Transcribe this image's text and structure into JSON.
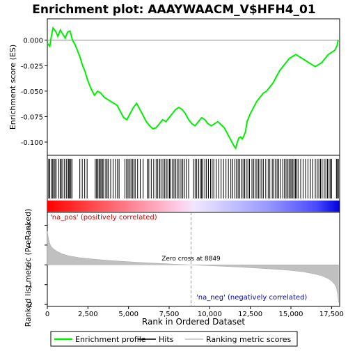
{
  "chart_data": {
    "type": "line",
    "title": "Enrichment plot: AAAYWAACM_V$HFH4_01",
    "top_panel": {
      "ylabel": "Enrichment score (ES)",
      "ylim": [
        -0.113,
        0.021
      ],
      "yticks": [
        0.0,
        -0.025,
        -0.05,
        -0.075,
        -0.1
      ],
      "ytick_labels": [
        "0.000",
        "-0.025",
        "-0.050",
        "-0.075",
        "-0.100"
      ],
      "series": [
        {
          "name": "Enrichment profile",
          "color": "#00ee00",
          "x": [
            0,
            150,
            250,
            350,
            500,
            650,
            800,
            950,
            1100,
            1250,
            1400,
            1550,
            1700,
            1850,
            2000,
            2150,
            2300,
            2500,
            2700,
            2900,
            3100,
            3300,
            3500,
            3700,
            3900,
            4100,
            4300,
            4500,
            4700,
            4900,
            5100,
            5300,
            5500,
            5700,
            5900,
            6100,
            6300,
            6500,
            6700,
            6900,
            7100,
            7300,
            7500,
            7700,
            7900,
            8100,
            8300,
            8500,
            8700,
            8900,
            9100,
            9300,
            9500,
            9700,
            9900,
            10100,
            10300,
            10500,
            10700,
            10900,
            11100,
            11300,
            11500,
            11600,
            11700,
            11800,
            11900,
            12000,
            12100,
            12200,
            12300,
            12500,
            12700,
            12900,
            13100,
            13300,
            13500,
            13700,
            13900,
            14100,
            14300,
            14500,
            14700,
            14900,
            15100,
            15300,
            15500,
            15700,
            15900,
            16100,
            16300,
            16500,
            16700,
            16900,
            17100,
            17300,
            17500,
            17700,
            17850,
            17900
          ],
          "y": [
            -0.003,
            -0.006,
            0.004,
            0.012,
            0.009,
            0.004,
            0.01,
            0.006,
            0.002,
            0.008,
            0.009,
            0.0,
            -0.004,
            -0.01,
            -0.016,
            -0.024,
            -0.03,
            -0.04,
            -0.048,
            -0.054,
            -0.05,
            -0.052,
            -0.056,
            -0.058,
            -0.06,
            -0.062,
            -0.064,
            -0.07,
            -0.076,
            -0.078,
            -0.072,
            -0.066,
            -0.062,
            -0.068,
            -0.074,
            -0.08,
            -0.084,
            -0.087,
            -0.086,
            -0.082,
            -0.078,
            -0.08,
            -0.076,
            -0.072,
            -0.068,
            -0.066,
            -0.068,
            -0.072,
            -0.078,
            -0.082,
            -0.084,
            -0.08,
            -0.076,
            -0.078,
            -0.082,
            -0.084,
            -0.082,
            -0.08,
            -0.083,
            -0.086,
            -0.092,
            -0.098,
            -0.104,
            -0.106,
            -0.1,
            -0.096,
            -0.095,
            -0.097,
            -0.094,
            -0.09,
            -0.08,
            -0.072,
            -0.066,
            -0.06,
            -0.056,
            -0.052,
            -0.05,
            -0.046,
            -0.042,
            -0.036,
            -0.03,
            -0.026,
            -0.022,
            -0.018,
            -0.016,
            -0.014,
            -0.016,
            -0.018,
            -0.02,
            -0.022,
            -0.024,
            -0.026,
            -0.024,
            -0.022,
            -0.018,
            -0.014,
            -0.012,
            -0.01,
            -0.005,
            0.0
          ]
        }
      ]
    },
    "hits": {
      "name": "Hits",
      "positions": [
        80,
        150,
        240,
        330,
        400,
        470,
        540,
        700,
        790,
        860,
        950,
        1060,
        1170,
        1280,
        1330,
        1390,
        1450,
        1520,
        2000,
        2150,
        2300,
        2450,
        2950,
        3030,
        3100,
        3180,
        3250,
        3310,
        3400,
        3470,
        3600,
        3680,
        3760,
        3900,
        4050,
        4200,
        4320,
        4420,
        4780,
        4880,
        4970,
        5060,
        5150,
        5240,
        5330,
        5410,
        5560,
        5720,
        5900,
        6150,
        6250,
        6400,
        6550,
        6700,
        6800,
        6920,
        7000,
        7120,
        7230,
        7330,
        7420,
        7520,
        7600,
        7710,
        7800,
        7910,
        8000,
        8100,
        8230,
        8340,
        8440,
        8560,
        8700,
        9000,
        9100,
        9200,
        9320,
        9420,
        9500,
        9580,
        9700,
        9800,
        9920,
        10050,
        10150,
        10250,
        10400,
        10550,
        10700,
        10850,
        11000,
        11150,
        11300,
        11420,
        11550,
        11650,
        11750,
        11850,
        11950,
        12050,
        12150,
        12250,
        12350,
        12450,
        12600,
        12700,
        12800,
        12900,
        13000,
        13100,
        13200,
        13300,
        13450,
        13600,
        13700,
        13850,
        13950,
        14050,
        14150,
        14250,
        14350,
        14500,
        14600,
        14700,
        14800,
        14880,
        14960,
        15040,
        15120,
        15200,
        15280,
        15360,
        15440,
        15600,
        15750,
        15900,
        16050,
        16200,
        16350,
        16500,
        16620,
        16720,
        16820,
        16920,
        17050,
        17150,
        17250,
        17350,
        17430,
        17500,
        17800,
        17870,
        17920
      ]
    },
    "bottom_panel": {
      "ylabel": "Ranked list metric (PreRanked)",
      "xlabel": "Rank in Ordered Dataset",
      "xlim": [
        0,
        18000
      ],
      "ylim": [
        -2.1,
        2.65
      ],
      "xticks": [
        0,
        2500,
        5000,
        7500,
        10000,
        12500,
        15000,
        17500
      ],
      "xtick_labels": [
        "0",
        "2,500",
        "5,000",
        "7,500",
        "10,000",
        "12,500",
        "15,000",
        "17,500"
      ],
      "yticks": [
        2,
        1,
        0,
        -1,
        -2
      ],
      "ytick_labels": [
        "2",
        "1",
        "0",
        "-1",
        "-2"
      ],
      "metric_curve": {
        "name": "Ranking metric scores",
        "x": [
          0,
          30,
          80,
          150,
          250,
          400,
          600,
          900,
          1300,
          2000,
          3000,
          4000,
          5000,
          6000,
          7000,
          8000,
          8849,
          10000,
          11000,
          12000,
          13000,
          14000,
          15000,
          15800,
          16400,
          16900,
          17300,
          17550,
          17700,
          17800,
          17880,
          17930
        ],
        "y": [
          1.7,
          1.55,
          1.3,
          1.08,
          0.92,
          0.8,
          0.68,
          0.56,
          0.46,
          0.36,
          0.28,
          0.21,
          0.16,
          0.11,
          0.07,
          0.03,
          0.0,
          -0.04,
          -0.08,
          -0.12,
          -0.17,
          -0.22,
          -0.28,
          -0.36,
          -0.45,
          -0.55,
          -0.7,
          -0.85,
          -1.0,
          -1.15,
          -1.5,
          -1.9
        ]
      },
      "zero_cross_label": "Zero cross at 8849",
      "zero_cross": 8849,
      "pos_label": "'na_pos' (positively correlated)",
      "neg_label": "'na_neg' (negatively correlated)"
    },
    "colors": {
      "profile": "#00ee00",
      "hits": "#000000",
      "metric_fill": "#c0c0c0",
      "pos_label": "#cc0000",
      "neg_label": "#0000cc",
      "bar_pos": "#ff0000",
      "bar_neg": "#0000ff"
    },
    "legend": {
      "placement": "bottom",
      "items": [
        {
          "label": "Enrichment profile",
          "color": "#00ee00"
        },
        {
          "label": "Hits",
          "color": "#000000"
        },
        {
          "label": "Ranking metric scores",
          "color": "#c0c0c0"
        }
      ]
    }
  }
}
